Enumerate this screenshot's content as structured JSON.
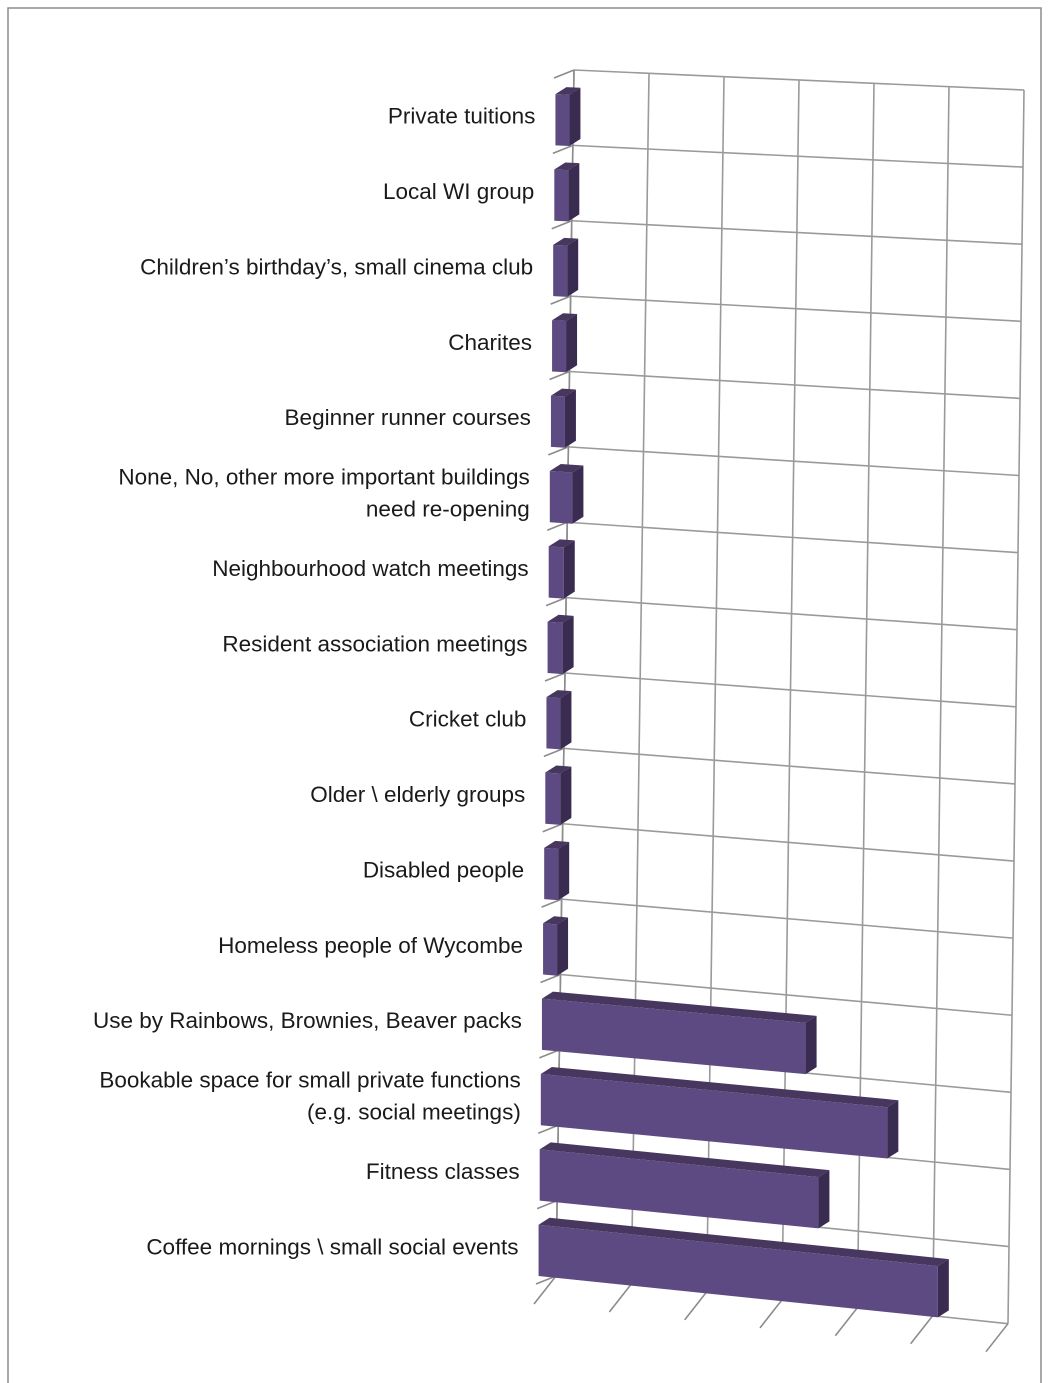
{
  "chart_data": {
    "type": "bar",
    "orientation": "horizontal",
    "style": "3d",
    "title": "",
    "xlabel": "",
    "ylabel": "",
    "grid": true,
    "legend": "none",
    "xlim": [
      0,
      6
    ],
    "bar_color": "#5e4a82",
    "categories": [
      [
        "Private tuitions"
      ],
      [
        "Local WI group"
      ],
      [
        "Children’s birthday’s, small cinema club"
      ],
      [
        "Charites"
      ],
      [
        "Beginner runner courses"
      ],
      [
        "None, No, other more important buildings",
        "need re-opening"
      ],
      [
        "Neighbourhood watch meetings"
      ],
      [
        "Resident association meetings"
      ],
      [
        "Cricket club"
      ],
      [
        "Older \\ elderly groups"
      ],
      [
        "Disabled people"
      ],
      [
        "Homeless  people of Wycombe"
      ],
      [
        "Use by Rainbows, Brownies, Beaver packs"
      ],
      [
        "Bookable space for small private functions",
        "(e.g. social meetings)"
      ],
      [
        "Fitness classes"
      ],
      [
        "Coffee mornings \\ small social events"
      ]
    ],
    "series": [
      {
        "values": [
          0.1,
          0.1,
          0.1,
          0.1,
          0.1,
          0.3,
          0.2,
          0.2,
          0.1,
          0.2,
          0.1,
          0.1,
          3.5,
          4.6,
          3.7,
          5.3
        ]
      }
    ]
  }
}
